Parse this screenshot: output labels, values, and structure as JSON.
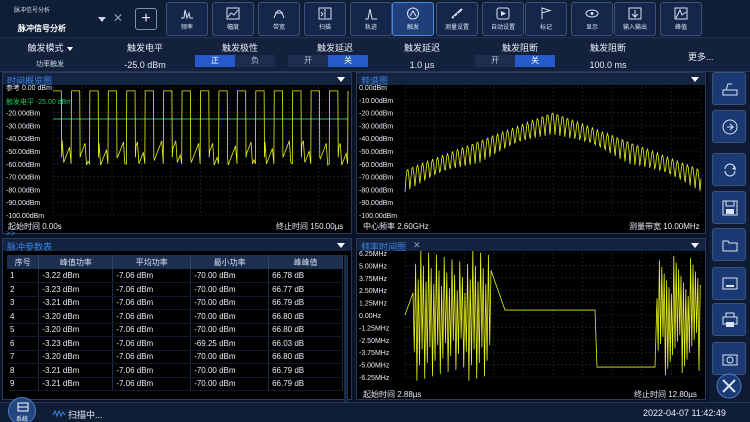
{
  "app_tab": {
    "subtitle": "脉冲信号分析",
    "title": "脉冲信号分析"
  },
  "toolbar": {
    "add_label": "+",
    "buttons": [
      {
        "label": "频率",
        "icon": "frequency-icon"
      },
      {
        "label": "幅度",
        "icon": "amplitude-icon"
      },
      {
        "label": "带宽",
        "icon": "bandwidth-icon"
      },
      {
        "label": "扫描",
        "icon": "sweep-icon"
      },
      {
        "label": "轨迹",
        "icon": "trace-icon"
      },
      {
        "label": "触发",
        "icon": "trigger-icon",
        "active": true
      },
      {
        "label": "测量设置",
        "icon": "measure-settings-icon"
      },
      {
        "label": "自动设置",
        "icon": "auto-settings-icon"
      },
      {
        "label": "标记",
        "icon": "marker-icon"
      },
      {
        "label": "显示",
        "icon": "display-icon"
      },
      {
        "label": "输入输出",
        "icon": "input-output-icon"
      },
      {
        "label": "峰值",
        "icon": "peak-icon"
      }
    ]
  },
  "params": {
    "trigger_mode": {
      "title": "触发模式",
      "value": "功率触发"
    },
    "trigger_level": {
      "title": "触发电平",
      "value": "-25.0 dBm"
    },
    "trigger_polarity": {
      "title": "触发极性",
      "options": [
        "正",
        "负"
      ],
      "selected": "正"
    },
    "trigger_delay_toggle": {
      "title": "触发延迟",
      "options": [
        "开",
        "关"
      ],
      "selected": "关"
    },
    "trigger_delay": {
      "title": "触发延迟",
      "value": "1.0 µs"
    },
    "trigger_holdoff_toggle": {
      "title": "触发阻断",
      "options": [
        "开",
        "关"
      ],
      "selected": "关"
    },
    "trigger_holdoff": {
      "title": "触发阻断",
      "value": "100.0 ms"
    },
    "more": "更多..."
  },
  "time_overview": {
    "title": "时间概览图",
    "ref_label": "参考 0.00 dBm",
    "trace_label": "触发电平 -25.00 dBm",
    "y_ticks": [
      "-20.00dBm",
      "-30.00dBm",
      "-40.00dBm",
      "-50.00dBm",
      "-60.00dBm",
      "-70.00dBm",
      "-80.00dBm",
      "-90.00dBm",
      "-100.00dBm"
    ],
    "start": "起始时间 0.00s",
    "end": "终止时间 150.00µs",
    "collapse_glyph": ">>"
  },
  "spectrum": {
    "title": "频谱图",
    "y_ticks": [
      "0.00dBm",
      "-10.00dBm",
      "-20.00dBm",
      "-30.00dBm",
      "-40.00dBm",
      "-50.00dBm",
      "-60.00dBm",
      "-70.00dBm",
      "-80.00dBm",
      "-90.00dBm",
      "-100.00dBm"
    ],
    "center": "中心频率 2.60GHz",
    "span": "测量带宽 10.00MHz"
  },
  "pulse_table": {
    "title": "脉冲参数表",
    "columns": [
      "序号",
      "峰值功率",
      "平均功率",
      "最小功率",
      "峰峰值"
    ],
    "rows": [
      [
        "1",
        "-3.22 dBm",
        "-7.06 dBm",
        "-70.00 dBm",
        "66.78 dB"
      ],
      [
        "2",
        "-3.23 dBm",
        "-7.06 dBm",
        "-70.00 dBm",
        "66.77 dB"
      ],
      [
        "3",
        "-3.21 dBm",
        "-7.06 dBm",
        "-70.00 dBm",
        "66.79 dB"
      ],
      [
        "4",
        "-3.20 dBm",
        "-7.06 dBm",
        "-70.00 dBm",
        "66.80 dB"
      ],
      [
        "5",
        "-3.20 dBm",
        "-7.06 dBm",
        "-70.00 dBm",
        "66.80 dB"
      ],
      [
        "6",
        "-3.23 dBm",
        "-7.06 dBm",
        "-69.25 dBm",
        "66.03 dB"
      ],
      [
        "7",
        "-3.20 dBm",
        "-7.06 dBm",
        "-70.00 dBm",
        "66.80 dB"
      ],
      [
        "8",
        "-3.21 dBm",
        "-7.06 dBm",
        "-70.00 dBm",
        "66.79 dB"
      ],
      [
        "9",
        "-3.21 dBm",
        "-7.06 dBm",
        "-70.00 dBm",
        "66.79 dB"
      ]
    ]
  },
  "freq_time": {
    "title": "频率时间图",
    "close_glyph": "✕",
    "y_ticks": [
      "6.25MHz",
      "5.00MHz",
      "3.75MHz",
      "2.50MHz",
      "1.25MHz",
      "0.00Hz",
      "-1.25MHz",
      "-2.50MHz",
      "-3.75MHz",
      "-5.00MHz",
      "-6.25MHz"
    ],
    "start": "起始时间 2.88µs",
    "end": "终止时间 12.80µs"
  },
  "sidebar": [
    "preset-icon",
    "export-icon",
    "refresh-icon",
    "save-icon",
    "folder-icon",
    "screenshot-icon",
    "print-icon",
    "camera-icon"
  ],
  "status": {
    "system_label": "系统",
    "state": "扫描中...",
    "datetime": "2022-04-07 11:42:49"
  },
  "colors": {
    "trace": "#e6f21a",
    "accent": "#3a86e8",
    "active_tab": "#2659c9",
    "level_line": "#22c55e"
  }
}
